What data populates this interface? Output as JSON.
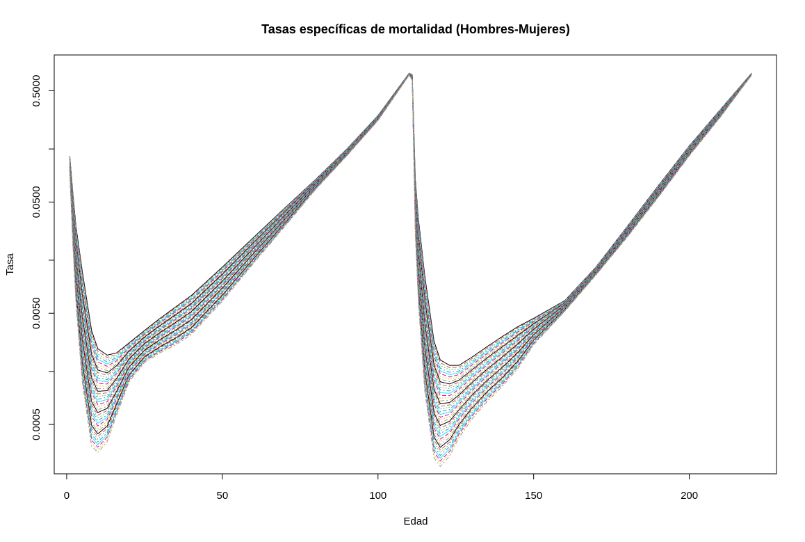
{
  "chart_data": {
    "type": "line",
    "title": "Tasas específicas de mortalidad (Hombres-Mujeres)",
    "xlabel": "Edad",
    "ylabel": "Tasa",
    "x_scale": "linear",
    "y_scale": "log",
    "xlim": [
      -4,
      228
    ],
    "ylim": [
      0.00018,
      1.05
    ],
    "x_ticks": [
      0,
      50,
      100,
      150,
      200
    ],
    "x_tick_labels": [
      "0",
      "50",
      "100",
      "150",
      "200"
    ],
    "y_ticks_labeled": [
      0.0005,
      0.005,
      0.05,
      0.5
    ],
    "y_tick_labels": [
      "0.0005",
      "0.0050",
      "0.0500",
      "0.5000"
    ],
    "y_ticks_minor": [
      0.0015,
      0.015,
      0.15
    ],
    "grid": false,
    "legend": "none",
    "series_count": 40,
    "series_note": "One curve per year; x = 1..110 is one sex, x = 111..220 is the other. Values below are the envelope of the curve family.",
    "palette": [
      "#000000",
      "#DF536B",
      "#61D04F",
      "#2297E6",
      "#28E2E5",
      "#CD0BBC",
      "#F5C710",
      "#9E9E9E"
    ],
    "line_styles": [
      "solid",
      "dashed",
      "dotted",
      "dotdash"
    ],
    "block1": {
      "x": [
        1,
        2,
        3,
        5,
        8,
        10,
        13,
        16,
        20,
        25,
        30,
        35,
        40,
        50,
        60,
        70,
        80,
        90,
        100,
        110
      ],
      "upper": [
        0.13,
        0.06,
        0.03,
        0.012,
        0.0035,
        0.0024,
        0.0021,
        0.0022,
        0.0027,
        0.0035,
        0.0045,
        0.0057,
        0.0072,
        0.013,
        0.024,
        0.044,
        0.08,
        0.15,
        0.3,
        0.72
      ],
      "lower": [
        0.09,
        0.02,
        0.006,
        0.0012,
        0.00032,
        0.00028,
        0.00035,
        0.0006,
        0.0012,
        0.0018,
        0.0022,
        0.0026,
        0.0032,
        0.0064,
        0.014,
        0.03,
        0.065,
        0.13,
        0.27,
        0.69
      ]
    },
    "block2": {
      "x": [
        111,
        112,
        113,
        115,
        118,
        120,
        123,
        126,
        130,
        135,
        140,
        145,
        150,
        160,
        170,
        180,
        190,
        200,
        210,
        220
      ],
      "upper": [
        0.7,
        0.08,
        0.035,
        0.011,
        0.0028,
        0.0019,
        0.0017,
        0.0017,
        0.002,
        0.0025,
        0.0031,
        0.0038,
        0.0045,
        0.0065,
        0.013,
        0.03,
        0.07,
        0.16,
        0.34,
        0.72
      ],
      "lower": [
        0.62,
        0.025,
        0.006,
        0.001,
        0.00025,
        0.00021,
        0.00026,
        0.00038,
        0.00055,
        0.0008,
        0.0011,
        0.0016,
        0.0026,
        0.0052,
        0.011,
        0.024,
        0.055,
        0.13,
        0.29,
        0.69
      ]
    }
  }
}
